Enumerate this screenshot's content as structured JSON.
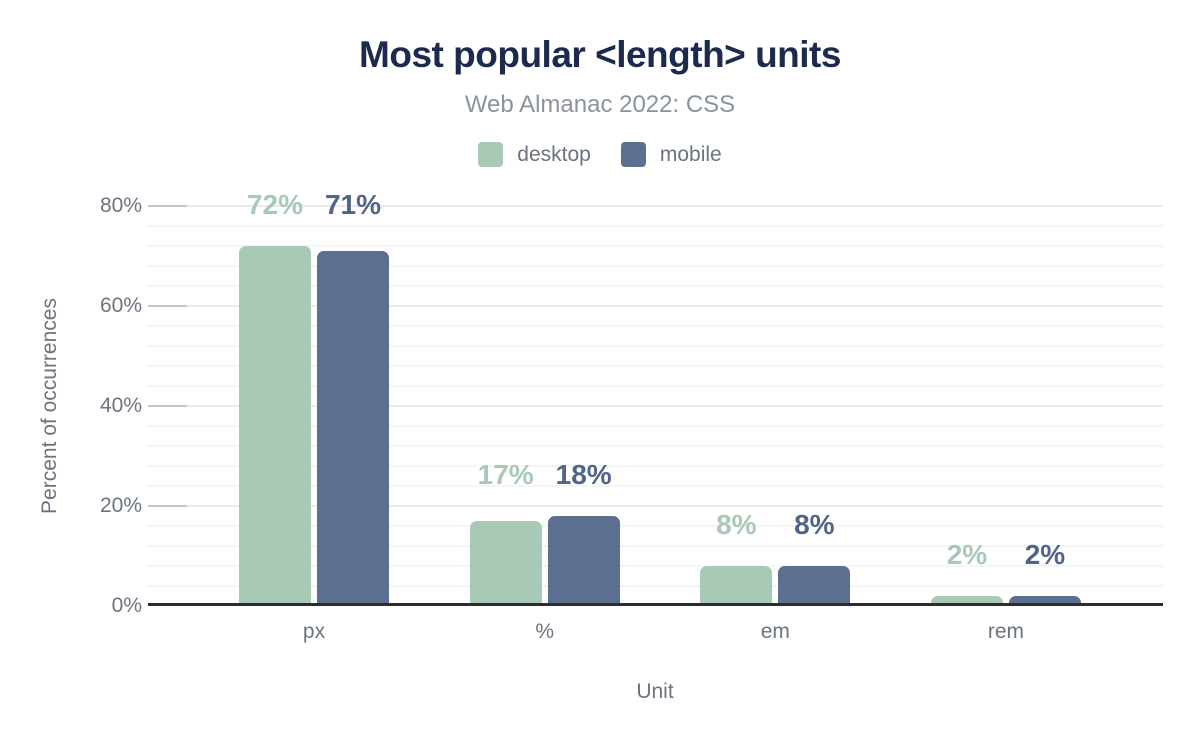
{
  "header": {
    "title": "Most popular <length> units",
    "subtitle": "Web Almanac 2022: CSS"
  },
  "colors": {
    "title": "#1b2a4e",
    "subtitle": "#8d939b",
    "axis_text": "#6c7480",
    "desktop": "#a7c9b6",
    "mobile": "#5d6f91",
    "desktop_label": "#a7c9b6",
    "mobile_label": "#52648a"
  },
  "chart_data": {
    "type": "bar",
    "title": "Most popular <length> units",
    "subtitle": "Web Almanac 2022: CSS",
    "categories": [
      "px",
      "%",
      "em",
      "rem"
    ],
    "series": [
      {
        "name": "desktop",
        "color": "#a7c9b6",
        "label_color": "#a7c9b6",
        "values": [
          72,
          17,
          8,
          2
        ]
      },
      {
        "name": "mobile",
        "color": "#5d6f91",
        "label_color": "#52648a",
        "values": [
          71,
          18,
          8,
          2
        ]
      }
    ],
    "xlabel": "Unit",
    "ylabel": "Percent of occurrences",
    "ylim": [
      0,
      80
    ],
    "y_ticks": [
      0,
      20,
      40,
      60,
      80
    ],
    "y_tick_suffix": "%",
    "minor_grid_step": 4,
    "data_label_suffix": "%",
    "grid": true,
    "legend_position": "top"
  }
}
